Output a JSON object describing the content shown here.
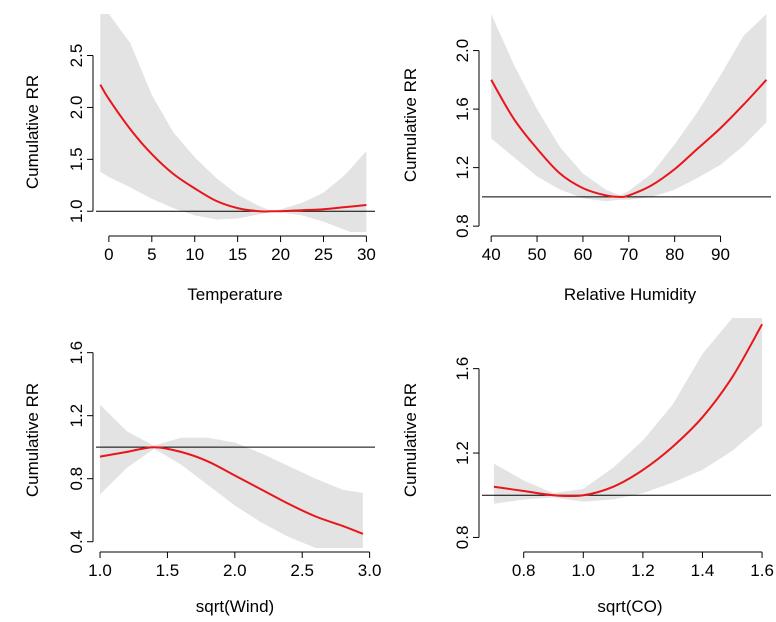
{
  "colors": {
    "curve": "#e8151b",
    "band": "#e3e3e3",
    "reference": "#000000",
    "axis": "#000000"
  },
  "chart_data": [
    {
      "type": "line",
      "title": "",
      "xlabel": "Temperature",
      "ylabel": "Cumulative RR",
      "xlim": [
        -1.5,
        31
      ],
      "ylim": [
        0.8,
        2.9
      ],
      "x_ticks": [
        0,
        5,
        10,
        15,
        20,
        25,
        30
      ],
      "x_tick_labels": [
        "0",
        "5",
        "10",
        "15",
        "20",
        "25",
        "30"
      ],
      "y_ticks": [
        1.0,
        1.5,
        2.0,
        2.5
      ],
      "y_tick_labels": [
        "1.0",
        "1.5",
        "2.0",
        "2.5"
      ],
      "reference_line": 1.0,
      "series": [
        {
          "role": "estimate",
          "x": [
            -1,
            0,
            2.5,
            5,
            7.5,
            10,
            12.5,
            15,
            17.5,
            19,
            20,
            22.5,
            25,
            27.5,
            30
          ],
          "y": [
            2.22,
            2.08,
            1.79,
            1.55,
            1.36,
            1.22,
            1.1,
            1.03,
            1.0,
            1.0,
            1.0,
            1.01,
            1.02,
            1.04,
            1.06
          ],
          "lower": [
            1.38,
            1.33,
            1.23,
            1.12,
            1.03,
            0.96,
            0.92,
            0.93,
            0.97,
            1.0,
            0.99,
            0.96,
            0.9,
            0.82,
            0.74
          ],
          "upper": [
            2.9,
            2.9,
            2.62,
            2.12,
            1.76,
            1.52,
            1.32,
            1.16,
            1.05,
            1.0,
            1.02,
            1.08,
            1.18,
            1.35,
            1.58
          ]
        }
      ]
    },
    {
      "type": "line",
      "title": "",
      "xlabel": "Relative Humidity",
      "ylabel": "Cumulative RR",
      "xlim": [
        38,
        101
      ],
      "ylim": [
        0.76,
        2.25
      ],
      "x_ticks": [
        40,
        50,
        60,
        70,
        80,
        90
      ],
      "x_tick_labels": [
        "40",
        "50",
        "60",
        "70",
        "80",
        "90"
      ],
      "y_ticks": [
        0.8,
        1.2,
        1.6,
        2.0
      ],
      "y_tick_labels": [
        "0.8",
        "1.2",
        "1.6",
        "2.0"
      ],
      "reference_line": 1.0,
      "series": [
        {
          "role": "estimate",
          "x": [
            40,
            45,
            50,
            55,
            60,
            65,
            68,
            70,
            75,
            80,
            85,
            90,
            95,
            100
          ],
          "y": [
            1.8,
            1.53,
            1.33,
            1.16,
            1.06,
            1.01,
            1.0,
            1.01,
            1.08,
            1.19,
            1.33,
            1.47,
            1.63,
            1.8
          ],
          "lower": [
            1.4,
            1.27,
            1.14,
            1.05,
            0.99,
            0.97,
            0.98,
            0.98,
            1.0,
            1.05,
            1.13,
            1.22,
            1.35,
            1.51
          ],
          "upper": [
            2.25,
            1.9,
            1.6,
            1.34,
            1.16,
            1.05,
            1.01,
            1.04,
            1.16,
            1.36,
            1.58,
            1.83,
            2.1,
            2.25
          ]
        }
      ]
    },
    {
      "type": "line",
      "title": "",
      "xlabel": "sqrt(Wind)",
      "ylabel": "Cumulative RR",
      "xlim": [
        0.97,
        3.04
      ],
      "ylim": [
        0.36,
        1.82
      ],
      "x_ticks": [
        1.0,
        1.5,
        2.0,
        2.5,
        3.0
      ],
      "x_tick_labels": [
        "1.0",
        "1.5",
        "2.0",
        "2.5",
        "3.0"
      ],
      "y_ticks": [
        0.4,
        0.8,
        1.2,
        1.6
      ],
      "y_tick_labels": [
        "0.4",
        "0.8",
        "1.2",
        "1.6"
      ],
      "reference_line": 1.0,
      "series": [
        {
          "role": "estimate",
          "x": [
            1.0,
            1.2,
            1.4,
            1.6,
            1.8,
            2.0,
            2.2,
            2.4,
            2.6,
            2.8,
            2.95
          ],
          "y": [
            0.94,
            0.97,
            1.0,
            0.97,
            0.91,
            0.82,
            0.73,
            0.64,
            0.56,
            0.5,
            0.45
          ],
          "lower": [
            0.7,
            0.87,
            0.99,
            0.89,
            0.76,
            0.63,
            0.52,
            0.43,
            0.36,
            0.36,
            0.36
          ],
          "upper": [
            1.27,
            1.1,
            1.01,
            1.06,
            1.06,
            1.03,
            0.96,
            0.88,
            0.8,
            0.73,
            0.71
          ]
        }
      ]
    },
    {
      "type": "line",
      "title": "",
      "xlabel": "sqrt(CO)",
      "ylabel": "Cumulative RR",
      "xlim": [
        0.66,
        1.63
      ],
      "ylim": [
        0.75,
        1.84
      ],
      "x_ticks": [
        0.8,
        1.0,
        1.2,
        1.4,
        1.6
      ],
      "x_tick_labels": [
        "0.8",
        "1.0",
        "1.2",
        "1.4",
        "1.6"
      ],
      "y_ticks": [
        0.8,
        1.2,
        1.6
      ],
      "y_tick_labels": [
        "0.8",
        "1.2",
        "1.6"
      ],
      "reference_line": 1.0,
      "series": [
        {
          "role": "estimate",
          "x": [
            0.7,
            0.8,
            0.9,
            1.0,
            1.1,
            1.2,
            1.3,
            1.4,
            1.5,
            1.6
          ],
          "y": [
            1.04,
            1.02,
            1.0,
            1.0,
            1.04,
            1.12,
            1.23,
            1.37,
            1.56,
            1.81
          ],
          "lower": [
            0.96,
            0.98,
            0.99,
            0.97,
            0.98,
            1.01,
            1.06,
            1.12,
            1.21,
            1.33
          ],
          "upper": [
            1.15,
            1.07,
            1.01,
            1.03,
            1.13,
            1.26,
            1.43,
            1.67,
            1.84,
            1.84
          ]
        }
      ]
    }
  ]
}
